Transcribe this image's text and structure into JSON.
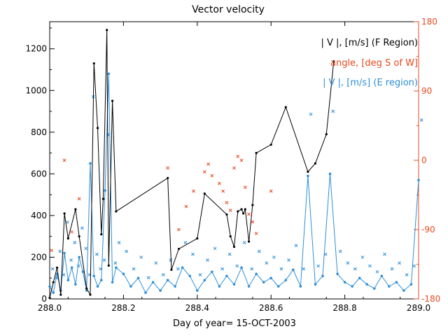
{
  "chart_data": {
    "type": "line",
    "title": "Vector velocity",
    "xlabel": "Day of year= 15-OCT-2003",
    "xlim": [
      288.0,
      289.0
    ],
    "x_ticks": [
      "288.0",
      "288.2",
      "288.4",
      "288.6",
      "288.8",
      "289.0"
    ],
    "ylim_left": [
      0,
      1330
    ],
    "y_ticks_left": [
      "0",
      "200",
      "400",
      "600",
      "800",
      "1000",
      "1200"
    ],
    "ylim_right": [
      -180,
      180
    ],
    "y_ticks_right": [
      "-180",
      "-90",
      "0",
      "90",
      "180"
    ],
    "legend": [
      {
        "label": "| V |, [m/s] (F Region)",
        "color": "#000000"
      },
      {
        "label": "angle, [deg S of W]",
        "color": "#e8491e"
      },
      {
        "label": "| V |, [m/s] (E region)",
        "color": "#2e8fd8"
      }
    ],
    "series": [
      {
        "name": "| V |, [m/s] (F Region)",
        "color": "#000000",
        "style": "line+dot",
        "x": [
          288.0,
          288.01,
          288.02,
          288.03,
          288.04,
          288.05,
          288.07,
          288.08,
          288.1,
          288.11,
          288.12,
          288.13,
          288.14,
          288.145,
          288.155,
          288.16,
          288.17,
          288.18,
          288.32,
          288.33,
          288.35,
          288.4,
          288.42,
          288.48,
          288.49,
          288.5,
          288.51,
          288.52,
          288.525,
          288.53,
          288.54,
          288.55,
          288.56,
          288.6,
          288.64,
          288.7,
          288.72,
          288.75,
          288.77
        ],
        "y": [
          5,
          80,
          150,
          20,
          410,
          290,
          430,
          300,
          50,
          20,
          1130,
          820,
          310,
          480,
          1290,
          160,
          950,
          420,
          580,
          140,
          240,
          290,
          505,
          405,
          300,
          250,
          420,
          430,
          410,
          430,
          275,
          450,
          700,
          740,
          920,
          610,
          650,
          790,
          1140
        ]
      },
      {
        "name": "angle, [deg S of W]",
        "color": "#e8491e",
        "style": "x",
        "x": [
          288.005,
          288.04,
          288.06,
          288.08,
          288.32,
          288.35,
          288.37,
          288.39,
          288.42,
          288.43,
          288.44,
          288.46,
          288.47,
          288.48,
          288.49,
          288.5,
          288.51,
          288.52,
          288.53,
          288.54,
          288.55,
          288.56,
          288.6
        ],
        "y": [
          -117,
          0,
          -93,
          -50,
          -10,
          -90,
          -60,
          -40,
          -15,
          -5,
          -20,
          -30,
          -40,
          -55,
          -65,
          -10,
          5,
          0,
          -35,
          -70,
          -80,
          -95,
          -40
        ]
      },
      {
        "name": "| V |, [m/s] (E region)",
        "color": "#2e8fd8",
        "style": "line+dot+x",
        "x": [
          288.0,
          288.01,
          288.02,
          288.03,
          288.04,
          288.05,
          288.06,
          288.07,
          288.08,
          288.09,
          288.1,
          288.11,
          288.12,
          288.13,
          288.14,
          288.15,
          288.16,
          288.17,
          288.18,
          288.2,
          288.22,
          288.24,
          288.26,
          288.28,
          288.3,
          288.32,
          288.34,
          288.36,
          288.38,
          288.4,
          288.42,
          288.44,
          288.46,
          288.48,
          288.5,
          288.52,
          288.54,
          288.56,
          288.58,
          288.6,
          288.62,
          288.64,
          288.66,
          288.68,
          288.7,
          288.72,
          288.74,
          288.76,
          288.78,
          288.8,
          288.82,
          288.84,
          288.86,
          288.88,
          288.9,
          288.92,
          288.94,
          288.96,
          288.98,
          289.0
        ],
        "y": [
          60,
          30,
          120,
          40,
          220,
          90,
          150,
          70,
          200,
          130,
          40,
          650,
          110,
          60,
          90,
          520,
          1080,
          80,
          150,
          120,
          60,
          100,
          30,
          80,
          40,
          90,
          60,
          150,
          110,
          40,
          90,
          130,
          60,
          110,
          70,
          150,
          60,
          120,
          80,
          100,
          60,
          90,
          140,
          60,
          590,
          70,
          110,
          600,
          120,
          80,
          60,
          100,
          70,
          50,
          110,
          60,
          80,
          40,
          70,
          570
        ]
      }
    ]
  }
}
